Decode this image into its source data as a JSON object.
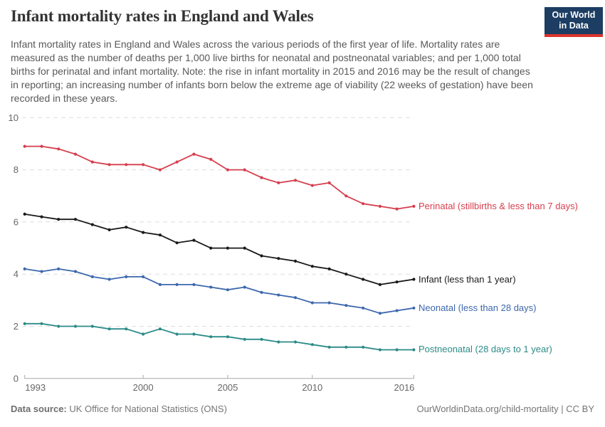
{
  "header": {
    "title": "Infant mortality rates in England and Wales",
    "logo": {
      "line1": "Our World",
      "line2": "in Data",
      "bg_color": "#1d3d63",
      "accent_color": "#dc352c"
    }
  },
  "subtitle": "Infant mortality rates in England and Wales across the various periods of the first year of life. Mortality rates are measured as the number of deaths per 1,000 live births for neonatal and postneonatal variables; and per 1,000 total births for perinatal and infant mortality. Note: the rise in infant mortality in 2015 and 2016 may be the result of changes in reporting; an increasing number of infants born below the extreme age of viability (22 weeks of gestation) have been recorded in these years.",
  "chart_data": {
    "type": "line",
    "x": [
      1993,
      1994,
      1995,
      1996,
      1997,
      1998,
      1999,
      2000,
      2001,
      2002,
      2003,
      2004,
      2005,
      2006,
      2007,
      2008,
      2009,
      2010,
      2011,
      2012,
      2013,
      2014,
      2015,
      2016
    ],
    "x_tick_labels": [
      "1993",
      "2000",
      "2005",
      "2010",
      "2016"
    ],
    "y_ticks": [
      0,
      2,
      4,
      6,
      8,
      10
    ],
    "ylim": [
      0,
      10
    ],
    "grid": "horizontal dashed",
    "legend_position": "end-of-line labels",
    "ylabel": "",
    "xlabel": "",
    "series": [
      {
        "name": "perinatal",
        "label": "Perinatal (stillbirths & less than 7 days)",
        "color": "#d63e4e",
        "values": [
          8.9,
          8.9,
          8.8,
          8.6,
          8.3,
          8.2,
          8.2,
          8.2,
          8.0,
          8.3,
          8.6,
          8.4,
          8.0,
          8.0,
          7.7,
          7.5,
          7.6,
          7.4,
          7.5,
          7.0,
          6.7,
          6.6,
          6.5,
          6.6
        ]
      },
      {
        "name": "infant",
        "label": "Infant (less than 1 year)",
        "color": "#1a1a1a",
        "values": [
          6.3,
          6.2,
          6.1,
          6.1,
          5.9,
          5.7,
          5.8,
          5.6,
          5.5,
          5.2,
          5.3,
          5.0,
          5.0,
          5.0,
          4.7,
          4.6,
          4.5,
          4.3,
          4.2,
          4.0,
          3.8,
          3.6,
          3.7,
          3.8
        ]
      },
      {
        "name": "neonatal",
        "label": "Neonatal (less than 28 days)",
        "color": "#3d68ad",
        "values": [
          4.2,
          4.1,
          4.2,
          4.1,
          3.9,
          3.8,
          3.9,
          3.9,
          3.6,
          3.6,
          3.6,
          3.5,
          3.4,
          3.5,
          3.3,
          3.2,
          3.1,
          2.9,
          2.9,
          2.8,
          2.7,
          2.5,
          2.6,
          2.7
        ]
      },
      {
        "name": "postneonatal",
        "label": "Postneonatal (28 days to 1 year)",
        "color": "#2b8b87",
        "values": [
          2.1,
          2.1,
          2.0,
          2.0,
          2.0,
          1.9,
          1.9,
          1.7,
          1.9,
          1.7,
          1.7,
          1.6,
          1.6,
          1.5,
          1.5,
          1.4,
          1.4,
          1.3,
          1.2,
          1.2,
          1.2,
          1.1,
          1.1,
          1.1
        ]
      }
    ],
    "axis_colors": {
      "tick_label": "#666666",
      "gridline": "#dedede",
      "axis_line": "#a8a8a8"
    }
  },
  "footer": {
    "source_label": "Data source:",
    "source_text": " UK Office for National Statistics (ONS)",
    "credit": "OurWorldinData.org/child-mortality | CC BY"
  }
}
